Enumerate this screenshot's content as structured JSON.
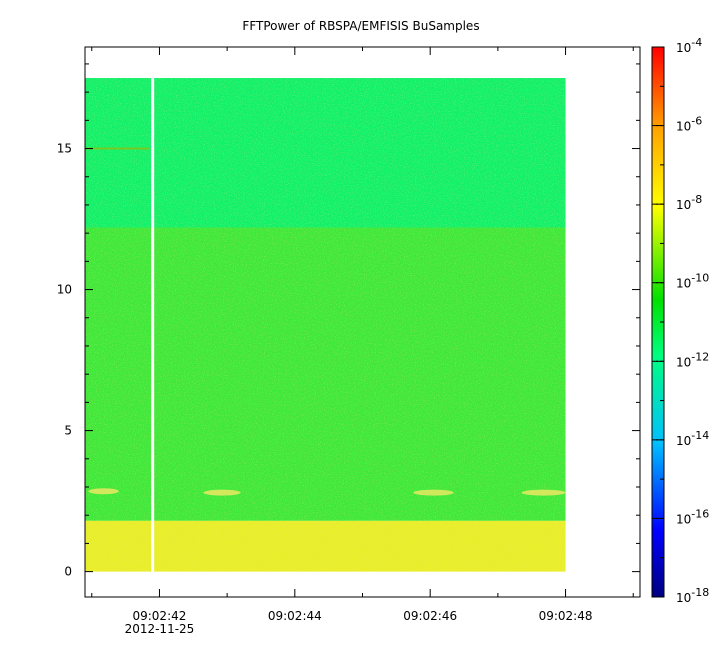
{
  "chart_data": {
    "type": "heatmap",
    "title": "FFTPower of RBSPA/EMFISIS  BuSamples",
    "xlabel": "",
    "ylabel": "",
    "x_ticks": [
      {
        "t": 42,
        "label": "09:02:42",
        "sublabel": "2012-11-25"
      },
      {
        "t": 44,
        "label": "09:02:44",
        "sublabel": ""
      },
      {
        "t": 46,
        "label": "09:02:46",
        "sublabel": ""
      },
      {
        "t": 48,
        "label": "09:02:48",
        "sublabel": ""
      }
    ],
    "x_minor_ticks": [
      41,
      43,
      45,
      47,
      49
    ],
    "xlim": [
      40.9,
      49.1
    ],
    "x_data_range": [
      40.9,
      48.0
    ],
    "data_gap_at": 41.9,
    "y_ticks": [
      0,
      5,
      10,
      15
    ],
    "ylim": [
      -0.9,
      18.6
    ],
    "y_data_range": [
      0,
      17.5
    ],
    "colorbar": {
      "scale": "log",
      "range": [
        1e-18,
        0.0001
      ],
      "tick_exponents": [
        -18,
        -16,
        -14,
        -12,
        -10,
        -8,
        -6,
        -4
      ],
      "tick_base": "10",
      "colormap": [
        "#00007f",
        "#0000ff",
        "#00bfff",
        "#00ff7f",
        "#00e000",
        "#ffff00",
        "#ffa500",
        "#ff0000"
      ]
    },
    "bands": [
      {
        "y": [
          12.2,
          17.5
        ],
        "level": -11.6,
        "color": "#10f06a",
        "description": ""
      },
      {
        "y": [
          1.8,
          12.2
        ],
        "level": -10.2,
        "color": "#3ee83a"
      },
      {
        "y": [
          0.0,
          1.8
        ],
        "level": -8.4,
        "color": "#e8ee2a"
      }
    ],
    "features": [
      {
        "kind": "line",
        "y": 15.0,
        "x": [
          40.9,
          41.85
        ],
        "color": "#7cc820"
      },
      {
        "kind": "streak",
        "y": 2.85,
        "x": [
          40.95,
          41.4
        ],
        "color": "#e2e860"
      },
      {
        "kind": "streak",
        "y": 2.8,
        "x": [
          42.65,
          43.2
        ],
        "color": "#e2e860"
      },
      {
        "kind": "streak",
        "y": 2.8,
        "x": [
          45.75,
          46.35
        ],
        "color": "#dfe860"
      },
      {
        "kind": "streak",
        "y": 2.8,
        "x": [
          47.35,
          48.0
        ],
        "color": "#e2e860"
      }
    ]
  }
}
